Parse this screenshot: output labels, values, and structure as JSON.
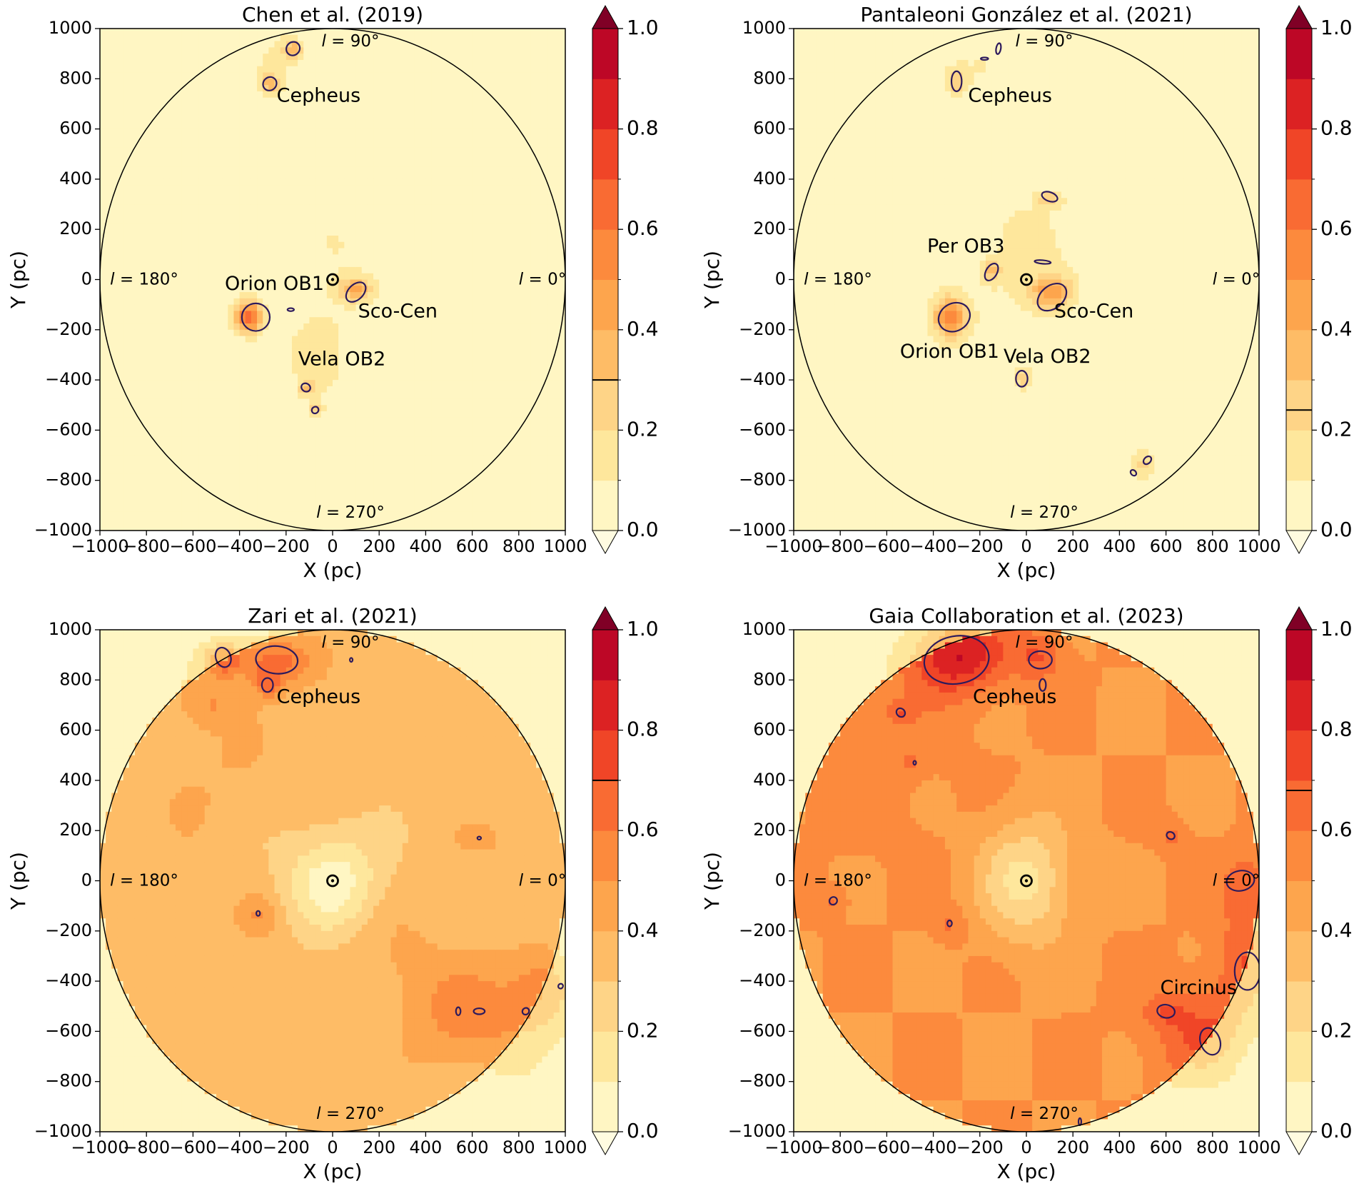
{
  "chart_data": [
    {
      "type": "heatmap",
      "title": "Chen et al. (2019)",
      "xlabel": "X (pc)",
      "ylabel": "Y (pc)",
      "xlim": [
        -1000,
        1000
      ],
      "ylim": [
        -1000,
        1000
      ],
      "xticks": [
        -1000,
        -800,
        -600,
        -400,
        -200,
        0,
        200,
        400,
        600,
        800,
        1000
      ],
      "yticks": [
        -1000,
        -800,
        -600,
        -400,
        -200,
        0,
        200,
        400,
        600,
        800,
        1000
      ],
      "xtick_labels": [
        "−1000",
        "−800",
        "−600",
        "−400",
        "−200",
        "0",
        "200",
        "400",
        "600",
        "800",
        "1000"
      ],
      "ytick_labels": [
        "−1000",
        "−800",
        "−600",
        "−400",
        "−200",
        "0",
        "200",
        "400",
        "600",
        "800",
        "1000"
      ],
      "circle_radius_pc": 1000,
      "sun": [
        0,
        0
      ],
      "background_level": 0.02,
      "blobs": [
        {
          "x": -360,
          "y": -150,
          "sx": 45,
          "sy": 45,
          "a": 0.62
        },
        {
          "x": 100,
          "y": -40,
          "sx": 50,
          "sy": 35,
          "a": 0.35
        },
        {
          "x": -170,
          "y": 920,
          "sx": 30,
          "sy": 25,
          "a": 0.3
        },
        {
          "x": -270,
          "y": 780,
          "sx": 30,
          "sy": 25,
          "a": 0.3
        },
        {
          "x": -110,
          "y": -430,
          "sx": 22,
          "sy": 22,
          "a": 0.26
        },
        {
          "x": -70,
          "y": -520,
          "sx": 18,
          "sy": 18,
          "a": 0.24
        },
        {
          "x": -60,
          "y": -300,
          "sx": 110,
          "sy": 150,
          "a": 0.12
        },
        {
          "x": 0,
          "y": 150,
          "sx": 160,
          "sy": 160,
          "a": 0.08
        },
        {
          "x": -250,
          "y": 850,
          "sx": 90,
          "sy": 110,
          "a": 0.1
        }
      ],
      "contours": [
        {
          "x": -330,
          "y": -150,
          "rx": 60,
          "ry": 55,
          "rot": 0
        },
        {
          "x": 100,
          "y": -50,
          "rx": 50,
          "ry": 30,
          "rot": -45
        },
        {
          "x": -170,
          "y": 920,
          "rx": 28,
          "ry": 28,
          "rot": 45
        },
        {
          "x": -270,
          "y": 780,
          "rx": 28,
          "ry": 28,
          "rot": 45
        },
        {
          "x": -115,
          "y": -430,
          "rx": 20,
          "ry": 16,
          "rot": 30
        },
        {
          "x": -75,
          "y": -520,
          "rx": 14,
          "ry": 14,
          "rot": 45
        },
        {
          "x": -180,
          "y": -120,
          "rx": 14,
          "ry": 6,
          "rot": 0
        }
      ],
      "annotations": [
        {
          "text": "Cepheus",
          "x": -60,
          "y": 730
        },
        {
          "text": "Orion OB1",
          "x": -250,
          "y": -20
        },
        {
          "text": "Sco-Cen",
          "x": 280,
          "y": -130
        },
        {
          "text": "Vela OB2",
          "x": 40,
          "y": -320
        }
      ],
      "l_labels": [
        "l = 90°",
        "l = 180°",
        "l = 0°",
        "l = 270°"
      ],
      "colorbar": {
        "ticks": [
          0.0,
          0.2,
          0.4,
          0.6,
          0.8,
          1.0
        ],
        "tick_labels": [
          "0.0",
          "0.2",
          "0.4",
          "0.6",
          "0.8",
          "1.0"
        ],
        "levels": 10,
        "threshold": 0.3
      }
    },
    {
      "type": "heatmap",
      "title": "Pantaleoni González et al. (2021)",
      "xlabel": "X (pc)",
      "ylabel": "Y (pc)",
      "xlim": [
        -1000,
        1000
      ],
      "ylim": [
        -1000,
        1000
      ],
      "xticks": [
        -1000,
        -800,
        -600,
        -400,
        -200,
        0,
        200,
        400,
        600,
        800,
        1000
      ],
      "yticks": [
        -1000,
        -800,
        -600,
        -400,
        -200,
        0,
        200,
        400,
        600,
        800,
        1000
      ],
      "xtick_labels": [
        "−1000",
        "−800",
        "−600",
        "−400",
        "−200",
        "0",
        "200",
        "400",
        "600",
        "800",
        "1000"
      ],
      "ytick_labels": [
        "−1000",
        "−800",
        "−600",
        "−400",
        "−200",
        "0",
        "200",
        "400",
        "600",
        "800",
        "1000"
      ],
      "circle_radius_pc": 1000,
      "sun": [
        0,
        0
      ],
      "background_level": 0.02,
      "blobs": [
        {
          "x": -330,
          "y": -150,
          "sx": 55,
          "sy": 60,
          "a": 0.5
        },
        {
          "x": 110,
          "y": -50,
          "sx": 60,
          "sy": 45,
          "a": 0.42
        },
        {
          "x": -150,
          "y": 30,
          "sx": 30,
          "sy": 30,
          "a": 0.26
        },
        {
          "x": -300,
          "y": 790,
          "sx": 30,
          "sy": 35,
          "a": 0.24
        },
        {
          "x": 100,
          "y": 320,
          "sx": 35,
          "sy": 22,
          "a": 0.22
        },
        {
          "x": -20,
          "y": -390,
          "sx": 25,
          "sy": 30,
          "a": 0.22
        },
        {
          "x": 500,
          "y": -740,
          "sx": 40,
          "sy": 40,
          "a": 0.2
        },
        {
          "x": 0,
          "y": 100,
          "sx": 170,
          "sy": 260,
          "a": 0.1
        },
        {
          "x": 300,
          "y": -500,
          "sx": 170,
          "sy": 170,
          "a": 0.08
        },
        {
          "x": -200,
          "y": 850,
          "sx": 120,
          "sy": 100,
          "a": 0.09
        }
      ],
      "contours": [
        {
          "x": -310,
          "y": -150,
          "rx": 70,
          "ry": 55,
          "rot": -30
        },
        {
          "x": 110,
          "y": -70,
          "rx": 70,
          "ry": 45,
          "rot": -40
        },
        {
          "x": -150,
          "y": 30,
          "rx": 40,
          "ry": 22,
          "rot": -60
        },
        {
          "x": -300,
          "y": 790,
          "rx": 22,
          "ry": 40,
          "rot": 0
        },
        {
          "x": 100,
          "y": 330,
          "rx": 35,
          "ry": 18,
          "rot": 20
        },
        {
          "x": -20,
          "y": -395,
          "rx": 25,
          "ry": 32,
          "rot": 0
        },
        {
          "x": 520,
          "y": -720,
          "rx": 14,
          "ry": 18,
          "rot": 45
        },
        {
          "x": 460,
          "y": -770,
          "rx": 14,
          "ry": 10,
          "rot": 45
        },
        {
          "x": 70,
          "y": 70,
          "rx": 35,
          "ry": 7,
          "rot": 5
        },
        {
          "x": -120,
          "y": 920,
          "rx": 10,
          "ry": 22,
          "rot": 10
        },
        {
          "x": -180,
          "y": 880,
          "rx": 16,
          "ry": 5,
          "rot": 0
        }
      ],
      "annotations": [
        {
          "text": "Cepheus",
          "x": -70,
          "y": 730
        },
        {
          "text": "Per OB3",
          "x": -260,
          "y": 130
        },
        {
          "text": "Sco-Cen",
          "x": 290,
          "y": -130
        },
        {
          "text": "Orion OB1",
          "x": -330,
          "y": -290
        },
        {
          "text": "Vela OB2",
          "x": 90,
          "y": -310
        }
      ],
      "l_labels": [
        "l = 90°",
        "l = 180°",
        "l = 0°",
        "l = 270°"
      ],
      "colorbar": {
        "ticks": [
          0.0,
          0.2,
          0.4,
          0.6,
          0.8,
          1.0
        ],
        "tick_labels": [
          "0.0",
          "0.2",
          "0.4",
          "0.6",
          "0.8",
          "1.0"
        ],
        "levels": 10,
        "threshold": 0.24
      }
    },
    {
      "type": "heatmap",
      "title": "Zari et al. (2021)",
      "xlabel": "X (pc)",
      "ylabel": "Y (pc)",
      "xlim": [
        -1000,
        1000
      ],
      "ylim": [
        -1000,
        1000
      ],
      "xticks": [
        -1000,
        -800,
        -600,
        -400,
        -200,
        0,
        200,
        400,
        600,
        800,
        1000
      ],
      "yticks": [
        -1000,
        -800,
        -600,
        -400,
        -200,
        0,
        200,
        400,
        600,
        800,
        1000
      ],
      "xtick_labels": [
        "−1000",
        "−800",
        "−600",
        "−400",
        "−200",
        "0",
        "200",
        "400",
        "600",
        "800",
        "1000"
      ],
      "ytick_labels": [
        "−1000",
        "−800",
        "−600",
        "−400",
        "−200",
        "0",
        "200",
        "400",
        "600",
        "800",
        "1000"
      ],
      "circle_radius_pc": 1000,
      "sun": [
        0,
        0
      ],
      "background_level": 0.34,
      "blobs": [
        {
          "x": 0,
          "y": 0,
          "sx": 140,
          "sy": 140,
          "a": -0.3
        },
        {
          "x": -470,
          "y": 880,
          "sx": 60,
          "sy": 50,
          "a": 0.3
        },
        {
          "x": -250,
          "y": 870,
          "sx": 110,
          "sy": 70,
          "a": 0.32
        },
        {
          "x": -280,
          "y": 780,
          "sx": 40,
          "sy": 40,
          "a": 0.2
        },
        {
          "x": -520,
          "y": 700,
          "sx": 90,
          "sy": 60,
          "a": 0.14
        },
        {
          "x": 620,
          "y": -530,
          "sx": 230,
          "sy": 150,
          "a": 0.2
        },
        {
          "x": 900,
          "y": -450,
          "sx": 90,
          "sy": 100,
          "a": 0.2
        },
        {
          "x": -320,
          "y": -140,
          "sx": 60,
          "sy": 60,
          "a": 0.14
        },
        {
          "x": 640,
          "y": 170,
          "sx": 60,
          "sy": 40,
          "a": 0.12
        },
        {
          "x": -550,
          "y": 450,
          "sx": 200,
          "sy": 200,
          "a": 0.06
        },
        {
          "x": 300,
          "y": -300,
          "sx": 200,
          "sy": 150,
          "a": 0.05
        }
      ],
      "contours": [
        {
          "x": -470,
          "y": 890,
          "rx": 32,
          "ry": 40,
          "rot": -20
        },
        {
          "x": -240,
          "y": 880,
          "rx": 90,
          "ry": 55,
          "rot": 5
        },
        {
          "x": -280,
          "y": 780,
          "rx": 24,
          "ry": 28,
          "rot": 0
        },
        {
          "x": 540,
          "y": -520,
          "rx": 10,
          "ry": 16,
          "rot": 0
        },
        {
          "x": 630,
          "y": -520,
          "rx": 24,
          "ry": 12,
          "rot": 0
        },
        {
          "x": 830,
          "y": -520,
          "rx": 14,
          "ry": 14,
          "rot": 45
        },
        {
          "x": 980,
          "y": -420,
          "rx": 10,
          "ry": 10,
          "rot": 45
        },
        {
          "x": -320,
          "y": -130,
          "rx": 8,
          "ry": 10,
          "rot": 0
        },
        {
          "x": 630,
          "y": 170,
          "rx": 8,
          "ry": 6,
          "rot": 0
        },
        {
          "x": 80,
          "y": 880,
          "rx": 6,
          "ry": 8,
          "rot": 0
        }
      ],
      "annotations": [
        {
          "text": "Cepheus",
          "x": -60,
          "y": 730
        }
      ],
      "l_labels": [
        "l = 90°",
        "l = 180°",
        "l = 0°",
        "l = 270°"
      ],
      "colorbar": {
        "ticks": [
          0.0,
          0.2,
          0.4,
          0.6,
          0.8,
          1.0
        ],
        "tick_labels": [
          "0.0",
          "0.2",
          "0.4",
          "0.6",
          "0.8",
          "1.0"
        ],
        "levels": 10,
        "threshold": 0.7
      }
    },
    {
      "type": "heatmap",
      "title": "Gaia Collaboration et al. (2023)",
      "xlabel": "X (pc)",
      "ylabel": "Y (pc)",
      "xlim": [
        -1000,
        1000
      ],
      "ylim": [
        -1000,
        1000
      ],
      "xticks": [
        -1000,
        -800,
        -600,
        -400,
        -200,
        0,
        200,
        400,
        600,
        800,
        1000
      ],
      "yticks": [
        -1000,
        -800,
        -600,
        -400,
        -200,
        0,
        200,
        400,
        600,
        800,
        1000
      ],
      "xtick_labels": [
        "−1000",
        "−800",
        "−600",
        "−400",
        "−200",
        "0",
        "200",
        "400",
        "600",
        "800",
        "1000"
      ],
      "ytick_labels": [
        "−1000",
        "−800",
        "−600",
        "−400",
        "−200",
        "0",
        "200",
        "400",
        "600",
        "800",
        "1000"
      ],
      "circle_radius_pc": 1000,
      "sun": [
        0,
        0
      ],
      "background_level": 0.5,
      "blobs": [
        {
          "x": 0,
          "y": 0,
          "sx": 140,
          "sy": 170,
          "a": -0.33
        },
        {
          "x": -300,
          "y": 900,
          "sx": 140,
          "sy": 110,
          "a": 0.4
        },
        {
          "x": 50,
          "y": 900,
          "sx": 80,
          "sy": 70,
          "a": 0.2
        },
        {
          "x": 750,
          "y": -600,
          "sx": 160,
          "sy": 140,
          "a": 0.2
        },
        {
          "x": 950,
          "y": -300,
          "sx": 90,
          "sy": 170,
          "a": 0.18
        },
        {
          "x": 600,
          "y": -520,
          "sx": 60,
          "sy": 40,
          "a": 0.14
        },
        {
          "x": -540,
          "y": 670,
          "sx": 40,
          "sy": 30,
          "a": 0.14
        },
        {
          "x": -500,
          "y": 470,
          "sx": 30,
          "sy": 30,
          "a": 0.12
        },
        {
          "x": -330,
          "y": -170,
          "sx": 50,
          "sy": 50,
          "a": 0.12
        },
        {
          "x": 620,
          "y": 180,
          "sx": 50,
          "sy": 40,
          "a": 0.12
        },
        {
          "x": -830,
          "y": -80,
          "sx": 40,
          "sy": 40,
          "a": 0.12
        },
        {
          "x": 950,
          "y": 0,
          "sx": 70,
          "sy": 90,
          "a": 0.14
        },
        {
          "x": -700,
          "y": 500,
          "sx": 250,
          "sy": 250,
          "a": 0.06
        }
      ],
      "contours": [
        {
          "x": -300,
          "y": 880,
          "rx": 140,
          "ry": 95,
          "rot": -10
        },
        {
          "x": 60,
          "y": 880,
          "rx": 50,
          "ry": 35,
          "rot": 0
        },
        {
          "x": 70,
          "y": 780,
          "rx": 14,
          "ry": 24,
          "rot": 0
        },
        {
          "x": -540,
          "y": 670,
          "rx": 20,
          "ry": 16,
          "rot": 45
        },
        {
          "x": -830,
          "y": -80,
          "rx": 16,
          "ry": 16,
          "rot": 45
        },
        {
          "x": 600,
          "y": -520,
          "rx": 38,
          "ry": 26,
          "rot": 10
        },
        {
          "x": 790,
          "y": -640,
          "rx": 42,
          "ry": 55,
          "rot": -20
        },
        {
          "x": 950,
          "y": -360,
          "rx": 55,
          "ry": 75,
          "rot": 0
        },
        {
          "x": 920,
          "y": 0,
          "rx": 60,
          "ry": 40,
          "rot": -10
        },
        {
          "x": 620,
          "y": 180,
          "rx": 18,
          "ry": 14,
          "rot": 30
        },
        {
          "x": -330,
          "y": -170,
          "rx": 10,
          "ry": 12,
          "rot": 0
        },
        {
          "x": -480,
          "y": 470,
          "rx": 6,
          "ry": 8,
          "rot": 0
        },
        {
          "x": 230,
          "y": -960,
          "rx": 6,
          "ry": 14,
          "rot": 0
        }
      ],
      "annotations": [
        {
          "text": "Cepheus",
          "x": -50,
          "y": 730
        },
        {
          "text": "Circinus",
          "x": 740,
          "y": -430
        }
      ],
      "l_labels": [
        "l = 90°",
        "l = 180°",
        "l = 0°",
        "l = 270°"
      ],
      "colorbar": {
        "ticks": [
          0.0,
          0.2,
          0.4,
          0.6,
          0.8,
          1.0
        ],
        "tick_labels": [
          "0.0",
          "0.2",
          "0.4",
          "0.6",
          "0.8",
          "1.0"
        ],
        "levels": 10,
        "threshold": 0.68
      }
    }
  ],
  "colors": {
    "level_colors": [
      "#fff6c3",
      "#fee79c",
      "#fed487",
      "#febc66",
      "#fda54d",
      "#fc8a3d",
      "#f96b33",
      "#f04527",
      "#dc2223",
      "#bd0726",
      "#800026"
    ],
    "contour": "#2d1a5c",
    "axes": "#000000"
  }
}
